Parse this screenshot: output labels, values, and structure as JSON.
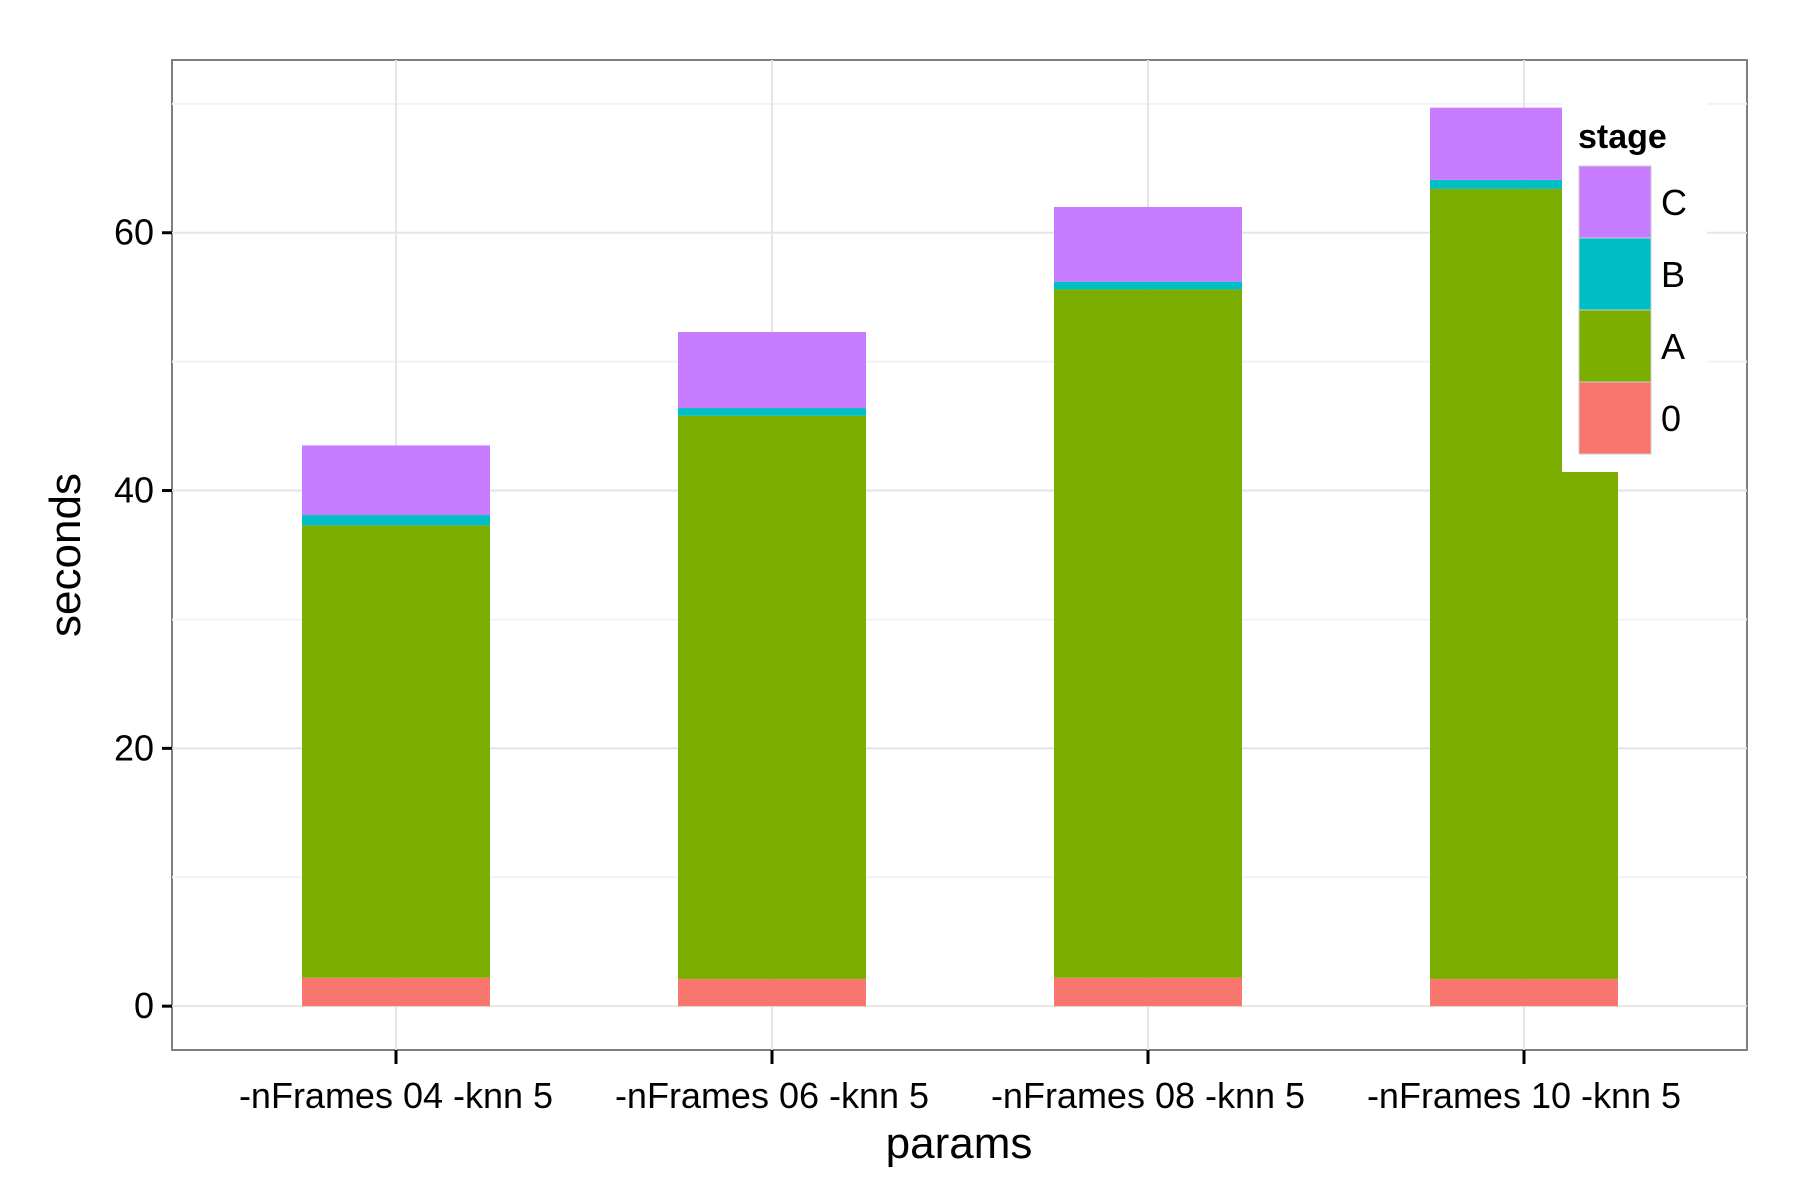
{
  "chart_data": {
    "type": "bar",
    "stacked": true,
    "categories": [
      "-nFrames 04 -knn 5",
      "-nFrames 06 -knn 5",
      "-nFrames 08 -knn 5",
      "-nFrames 10 -knn 5"
    ],
    "series": [
      {
        "name": "0",
        "color": "#F8766D",
        "values": [
          2.2,
          2.1,
          2.2,
          2.1
        ]
      },
      {
        "name": "A",
        "color": "#7CAE00",
        "values": [
          35.1,
          43.7,
          53.4,
          61.3
        ]
      },
      {
        "name": "B",
        "color": "#00BFC4",
        "values": [
          0.8,
          0.6,
          0.6,
          0.7
        ]
      },
      {
        "name": "C",
        "color": "#C77CFF",
        "values": [
          5.4,
          5.9,
          5.8,
          5.6
        ]
      }
    ],
    "xlabel": "params",
    "ylabel": "seconds",
    "ylim": [
      -3.4,
      73.4
    ],
    "yticks": [
      0,
      20,
      40,
      60
    ],
    "grid": true,
    "legend": {
      "title": "stage",
      "position": "top-right",
      "order": [
        "C",
        "B",
        "A",
        "0"
      ]
    }
  }
}
